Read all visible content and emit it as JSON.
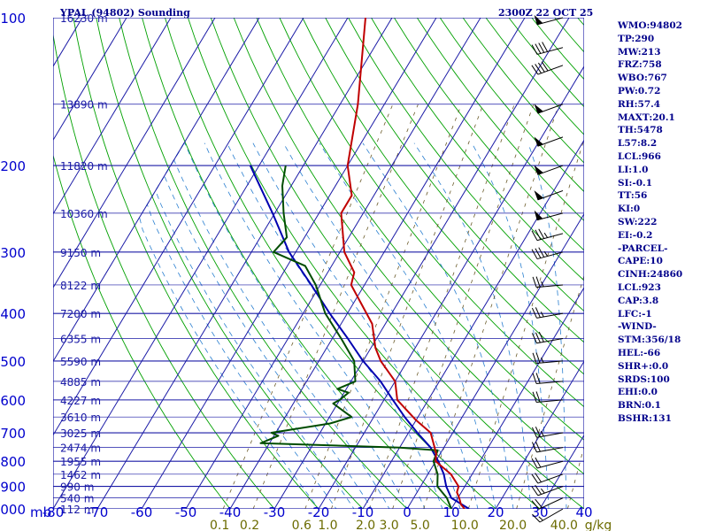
{
  "header": {
    "title": "YPAL (94802) Sounding",
    "timestamp": "2300Z 22 OCT 25"
  },
  "stats": [
    "WMO:94802",
    "TP:290",
    "MW:213",
    "FRZ:758",
    "WBO:767",
    "PW:0.72",
    "RH:57.4",
    "MAXT:20.1",
    "TH:5478",
    "L57:8.2",
    "LCL:966",
    "LI:1.0",
    "SI:-0.1",
    "TT:56",
    "KI:0",
    "SW:222",
    "EI:-0.2",
    "-PARCEL-",
    "CAPE:10",
    "CINH:24860",
    "LCL:923",
    "CAP:3.8",
    "LFC:-1",
    "-WIND-",
    "STM:356/18",
    "HEL:-66",
    "SHR+:0.0",
    "SRDS:100",
    "EHI:0.0",
    "BRN:0.1",
    "BSHR:131"
  ],
  "colors": {
    "isobar": "#1a1aa6",
    "isotherm": "#1a1aa6",
    "dry_adiabat": "#00a000",
    "moist_adiabat": "#2a7fd0",
    "mixing_ratio": "#6b5b2a",
    "temperature": "#c00000",
    "dewpoint": "#004d00",
    "parcel": "#0000b0",
    "axis_text": "#0000cd",
    "mixing_text": "#6b6b00",
    "wind": "#000000"
  },
  "chart_data": {
    "type": "skew-t",
    "pressure_unit": "mb",
    "temperature_unit": "°C",
    "mixing_ratio_unit": "g/kg",
    "y_axis_label": "mb",
    "ylim": [
      1000,
      100
    ],
    "xlim": [
      -80,
      40
    ],
    "pressure_ticks": [
      100,
      200,
      300,
      400,
      500,
      600,
      700,
      800,
      900,
      1000
    ],
    "temperature_ticks": [
      -80,
      -70,
      -60,
      -50,
      -40,
      -30,
      -20,
      -10,
      0,
      10,
      20,
      30,
      40
    ],
    "mixing_ratio_labels": [
      "0.1",
      "0.2",
      "0.6",
      "1.0",
      "2.0",
      "3.0",
      "5.0",
      "10.0",
      "20.0",
      "40.0"
    ],
    "mixing_ratio_unit_label": "g/kg",
    "height_labels": [
      {
        "p": 100,
        "label": "16230 m"
      },
      {
        "p": 150,
        "label": "13890 m"
      },
      {
        "p": 200,
        "label": "11820 m"
      },
      {
        "p": 250,
        "label": "10360 m"
      },
      {
        "p": 300,
        "label": "9150 m"
      },
      {
        "p": 350,
        "label": "8122 m"
      },
      {
        "p": 400,
        "label": "7200 m"
      },
      {
        "p": 450,
        "label": "6355 m"
      },
      {
        "p": 500,
        "label": "5590 m"
      },
      {
        "p": 550,
        "label": "4885 m"
      },
      {
        "p": 600,
        "label": "4227 m"
      },
      {
        "p": 650,
        "label": "3610 m"
      },
      {
        "p": 700,
        "label": "3025 m"
      },
      {
        "p": 750,
        "label": "2474 m"
      },
      {
        "p": 800,
        "label": "1955 m"
      },
      {
        "p": 850,
        "label": "1462 m"
      },
      {
        "p": 900,
        "label": "990 m"
      },
      {
        "p": 950,
        "label": "540 m"
      },
      {
        "p": 1000,
        "label": "112 m"
      }
    ],
    "series": [
      {
        "name": "temperature",
        "points": [
          [
            1000,
            13
          ],
          [
            980,
            11.6
          ],
          [
            950,
            10.3
          ],
          [
            925,
            9
          ],
          [
            900,
            8.6
          ],
          [
            850,
            5.2
          ],
          [
            800,
            0
          ],
          [
            770,
            -1
          ],
          [
            700,
            -5
          ],
          [
            660,
            -10
          ],
          [
            600,
            -17
          ],
          [
            550,
            -20
          ],
          [
            500,
            -26
          ],
          [
            470,
            -29
          ],
          [
            420,
            -33
          ],
          [
            350,
            -43
          ],
          [
            330,
            -44
          ],
          [
            300,
            -49
          ],
          [
            250,
            -55
          ],
          [
            230,
            -55
          ],
          [
            200,
            -60
          ],
          [
            150,
            -66
          ],
          [
            100,
            -76
          ]
        ]
      },
      {
        "name": "dewpoint",
        "points": [
          [
            1000,
            10
          ],
          [
            950,
            7.5
          ],
          [
            900,
            3.8
          ],
          [
            850,
            2.2
          ],
          [
            800,
            -0.5
          ],
          [
            760,
            -1
          ],
          [
            750,
            -10
          ],
          [
            735,
            -42
          ],
          [
            710,
            -39
          ],
          [
            700,
            -41
          ],
          [
            670,
            -29
          ],
          [
            650,
            -25
          ],
          [
            610,
            -31
          ],
          [
            600,
            -30
          ],
          [
            580,
            -29
          ],
          [
            570,
            -32
          ],
          [
            550,
            -29
          ],
          [
            500,
            -32
          ],
          [
            450,
            -38
          ],
          [
            400,
            -45
          ],
          [
            350,
            -51
          ],
          [
            320,
            -56
          ],
          [
            300,
            -65
          ],
          [
            280,
            -64
          ],
          [
            250,
            -68
          ],
          [
            220,
            -72
          ],
          [
            200,
            -74
          ]
        ]
      },
      {
        "name": "parcel",
        "points": [
          [
            1000,
            14
          ],
          [
            950,
            8.5
          ],
          [
            900,
            5.8
          ],
          [
            850,
            3.6
          ],
          [
            800,
            0.6
          ],
          [
            750,
            -3
          ],
          [
            700,
            -8
          ],
          [
            650,
            -13
          ],
          [
            600,
            -18
          ],
          [
            550,
            -23.3
          ],
          [
            500,
            -30
          ],
          [
            450,
            -36.5
          ],
          [
            400,
            -44
          ],
          [
            350,
            -52
          ],
          [
            300,
            -61.5
          ],
          [
            250,
            -70.5
          ],
          [
            200,
            -82
          ]
        ]
      }
    ],
    "wind_barbs": [
      {
        "p": 1000,
        "dir": 240,
        "spd": 15
      },
      {
        "p": 950,
        "dir": 245,
        "spd": 20
      },
      {
        "p": 900,
        "dir": 250,
        "spd": 25
      },
      {
        "p": 850,
        "dir": 250,
        "spd": 20
      },
      {
        "p": 800,
        "dir": 255,
        "spd": 20
      },
      {
        "p": 750,
        "dir": 260,
        "spd": 20
      },
      {
        "p": 700,
        "dir": 260,
        "spd": 25
      },
      {
        "p": 600,
        "dir": 265,
        "spd": 20
      },
      {
        "p": 550,
        "dir": 265,
        "spd": 20
      },
      {
        "p": 500,
        "dir": 265,
        "spd": 25
      },
      {
        "p": 450,
        "dir": 260,
        "spd": 30
      },
      {
        "p": 400,
        "dir": 260,
        "spd": 25
      },
      {
        "p": 350,
        "dir": 265,
        "spd": 25
      },
      {
        "p": 300,
        "dir": 255,
        "spd": 35
      },
      {
        "p": 275,
        "dir": 255,
        "spd": 35
      },
      {
        "p": 250,
        "dir": 255,
        "spd": 50
      },
      {
        "p": 225,
        "dir": 250,
        "spd": 50
      },
      {
        "p": 200,
        "dir": 250,
        "spd": 50
      },
      {
        "p": 175,
        "dir": 250,
        "spd": 50
      },
      {
        "p": 150,
        "dir": 250,
        "spd": 50
      },
      {
        "p": 125,
        "dir": 250,
        "spd": 40
      },
      {
        "p": 115,
        "dir": 255,
        "spd": 40
      },
      {
        "p": 100,
        "dir": 255,
        "spd": 50
      }
    ]
  }
}
